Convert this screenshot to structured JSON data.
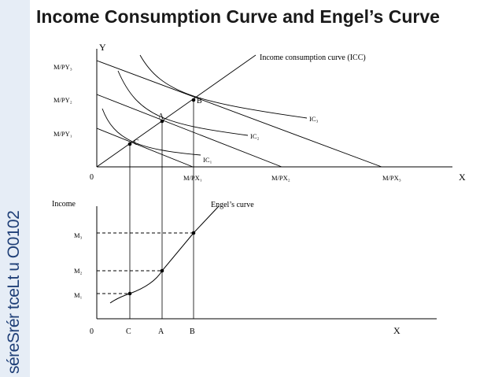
{
  "slide": {
    "title": "Income Consumption Curve and Engel’s Curve",
    "side_text": "séreSrér tceLt u O0102"
  },
  "top_graph": {
    "y_axis_label": "Y",
    "x_axis_label": "X",
    "origin_label": "0",
    "y_ticks": [
      "M/PY₃",
      "M/PY₂",
      "M/PY₁"
    ],
    "x_ticks": [
      "M/PX₁",
      "M/PX₂",
      "M/PX₃"
    ],
    "icc_label": "Income consumption curve (ICC)",
    "indifference_curves": [
      "IC₁",
      "IC₂",
      "IC₃"
    ],
    "points": [
      "C",
      "A",
      "B"
    ]
  },
  "bottom_graph": {
    "y_axis_label": "Income",
    "x_axis_label": "X",
    "origin_label": "0",
    "curve_label": "Engel’s curve",
    "y_ticks": [
      "M₃",
      "M₂",
      "M₁"
    ],
    "x_ticks": [
      "C",
      "A",
      "B"
    ]
  }
}
